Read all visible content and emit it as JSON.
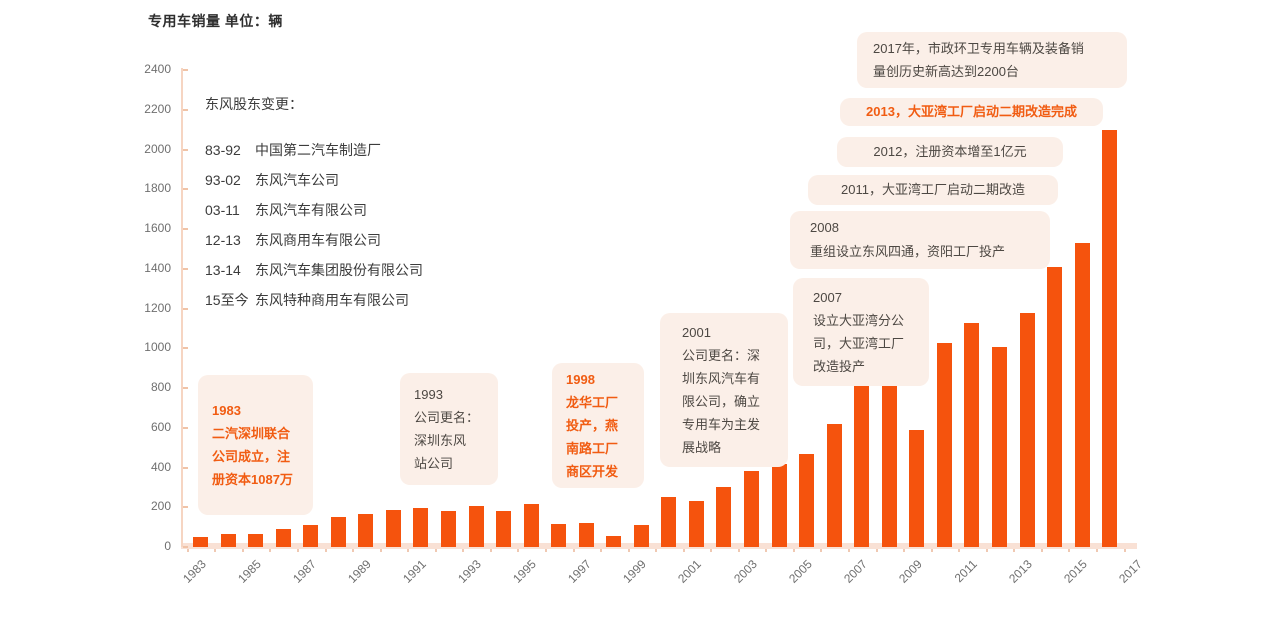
{
  "page": {
    "title": "专用车销量 单位：辆"
  },
  "colors": {
    "bar": "#f5530d",
    "emphasis_text": "#f15c12",
    "dark_text": "#4d4843",
    "axis_label": "#6f6f6f",
    "annotation_box_bg": "#fbefe8",
    "axis_line": "#f6d5c2",
    "axis_baseline_band": "#f9e1d5"
  },
  "shareholders": {
    "heading": "东风股东变更：",
    "items": [
      {
        "period": "83-92",
        "name": "中国第二汽车制造厂"
      },
      {
        "period": "93-02",
        "name": "东风汽车公司"
      },
      {
        "period": "03-11",
        "name": "东风汽车有限公司"
      },
      {
        "period": "12-13",
        "name": "东风商用车有限公司"
      },
      {
        "period": "13-14",
        "name": "东风汽车集团股份有限公司"
      },
      {
        "period": "15至今",
        "name": "东风特种商用车有限公司"
      }
    ]
  },
  "annotations": [
    {
      "id": "a2017",
      "emphasis": false,
      "lines": [
        "2017年，市政环卫专用车辆及装备销",
        "量创历史新高达到2200台"
      ]
    },
    {
      "id": "a2013",
      "emphasis": true,
      "lines": [
        "2013，大亚湾工厂启动二期改造完成"
      ]
    },
    {
      "id": "a2012",
      "emphasis": false,
      "lines": [
        "2012，注册资本增至1亿元"
      ]
    },
    {
      "id": "a2011",
      "emphasis": false,
      "lines": [
        "2011，大亚湾工厂启动二期改造"
      ]
    },
    {
      "id": "a2008",
      "emphasis": false,
      "lines": [
        "2008",
        "重组设立东风四通，资阳工厂投产"
      ]
    },
    {
      "id": "a2007",
      "emphasis": false,
      "lines": [
        "2007",
        "设立大亚湾分公",
        "司，大亚湾工厂",
        "改造投产"
      ]
    },
    {
      "id": "a2001",
      "emphasis": false,
      "lines": [
        "2001",
        "公司更名：深",
        "圳东风汽车有",
        "限公司，确立",
        "专用车为主发",
        "展战略"
      ]
    },
    {
      "id": "a1998",
      "emphasis": true,
      "lines": [
        "1998",
        "龙华工厂",
        "投产，燕",
        "南路工厂",
        "商区开发"
      ]
    },
    {
      "id": "a1993",
      "emphasis": false,
      "lines": [
        "1993",
        "公司更名：",
        "深圳东风",
        "站公司"
      ]
    },
    {
      "id": "a1983",
      "emphasis": true,
      "lines": [
        "1983",
        "二汽深圳联合",
        "公司成立，注",
        "册资本1087万"
      ]
    }
  ],
  "chart_data": {
    "type": "bar",
    "title": "专用车销量",
    "unit_label": "单位：辆",
    "categories": [
      1983,
      1984,
      1985,
      1986,
      1987,
      1988,
      1989,
      1990,
      1991,
      1992,
      1993,
      1994,
      1995,
      1996,
      1997,
      1998,
      1999,
      2000,
      2001,
      2002,
      2003,
      2004,
      2005,
      2006,
      2007,
      2008,
      2009,
      2010,
      2011,
      2012,
      2013,
      2014,
      2015,
      2016,
      2017
    ],
    "values": [
      50,
      65,
      65,
      90,
      110,
      150,
      165,
      185,
      195,
      180,
      205,
      180,
      215,
      115,
      120,
      55,
      110,
      250,
      230,
      300,
      380,
      420,
      470,
      620,
      850,
      825,
      590,
      1025,
      1125,
      1005,
      1175,
      1410,
      1530,
      2100,
      null
    ],
    "ylim": [
      0,
      2400
    ],
    "yticks": [
      0,
      200,
      400,
      600,
      800,
      1000,
      1200,
      1400,
      1600,
      1800,
      2000,
      2200,
      2400
    ],
    "xtick_labels": [
      "1983",
      "1985",
      "1987",
      "1989",
      "1991",
      "1993",
      "1995",
      "1997",
      "1999",
      "2001",
      "2003",
      "2005",
      "2007",
      "2009",
      "2011",
      "2013",
      "2015",
      "2017"
    ],
    "grid": false,
    "legend": null,
    "bar_color": "#f5530d"
  }
}
